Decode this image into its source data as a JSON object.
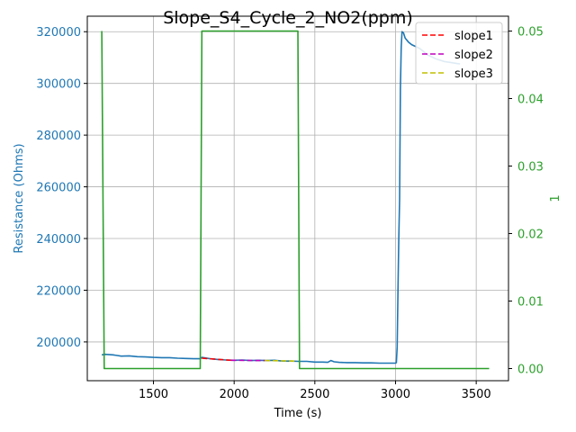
{
  "chart_data": {
    "type": "line",
    "title": "Slope_S4_Cycle_2_NO2(ppm)",
    "xlabel": "Time (s)",
    "ylabel_left": "Resistance (Ohms)",
    "ylabel_right": "1",
    "xlim": [
      1090,
      3700
    ],
    "ylim_left": [
      185000,
      326000
    ],
    "ylim_right": [
      -0.0018,
      0.0522
    ],
    "x_ticks": [
      1500,
      2000,
      2500,
      3000,
      3500
    ],
    "y_ticks_left": [
      200000,
      220000,
      240000,
      260000,
      280000,
      300000,
      320000
    ],
    "y_ticks_left_labels": [
      "200000",
      "220000",
      "240000",
      "260000",
      "280000",
      "300000",
      "320000"
    ],
    "y_ticks_right": [
      0.0,
      0.01,
      0.02,
      0.03,
      0.04,
      0.05
    ],
    "y_ticks_right_labels": [
      "0.00",
      "0.01",
      "0.02",
      "0.03",
      "0.04",
      "0.05"
    ],
    "grid": true,
    "legend_position": "top-right",
    "colors": {
      "resistance": "#1f77b4",
      "concentration": "#2ca02c",
      "slope1": "#ff0000",
      "slope2": "#bf00bf",
      "slope3": "#bfbf00",
      "left_axis_text": "#1f77b4",
      "right_axis_text": "#2ca02c"
    },
    "series": [
      {
        "name": "",
        "axis": "left",
        "color": "#1f77b4",
        "x": [
          1180,
          1200,
          1250,
          1300,
          1350,
          1400,
          1450,
          1500,
          1550,
          1600,
          1650,
          1700,
          1750,
          1790,
          1800,
          1850,
          1900,
          1950,
          2000,
          2050,
          2100,
          2150,
          2200,
          2250,
          2300,
          2350,
          2400,
          2450,
          2500,
          2550,
          2580,
          2600,
          2620,
          2650,
          2700,
          2750,
          2800,
          2850,
          2900,
          2950,
          3000,
          3005,
          3010,
          3015,
          3020,
          3025,
          3030,
          3035,
          3040,
          3050,
          3060,
          3080,
          3100,
          3150,
          3200,
          3250,
          3300,
          3350,
          3400
        ],
        "y": [
          195000,
          195200,
          195000,
          194500,
          194600,
          194300,
          194200,
          194000,
          193900,
          193900,
          193700,
          193600,
          193500,
          193500,
          194000,
          193500,
          193200,
          193000,
          192900,
          193000,
          192800,
          192900,
          192800,
          192900,
          192600,
          192600,
          192500,
          192500,
          192200,
          192200,
          192100,
          192800,
          192300,
          192100,
          192000,
          192000,
          191900,
          191900,
          191800,
          191800,
          191800,
          192000,
          198000,
          220000,
          240000,
          255000,
          298000,
          314000,
          320000,
          319500,
          317500,
          316000,
          315000,
          313500,
          311000,
          309500,
          308500,
          308000,
          307500
        ]
      },
      {
        "name": "",
        "axis": "right",
        "color": "#2ca02c",
        "x": [
          1180,
          1195,
          1780,
          1790,
          1800,
          2385,
          2395,
          2405,
          3580
        ],
        "y": [
          0.05,
          0.0,
          0.0,
          0.0,
          0.05,
          0.05,
          0.05,
          0.0,
          0.0
        ]
      },
      {
        "name": "slope1",
        "axis": "left",
        "color": "#ff0000",
        "style": "dashed",
        "x": [
          1800,
          1980
        ],
        "y": [
          193700,
          192900
        ]
      },
      {
        "name": "slope2",
        "axis": "left",
        "color": "#bf00bf",
        "style": "dashed",
        "x": [
          1980,
          2190
        ],
        "y": [
          192900,
          192800
        ]
      },
      {
        "name": "slope3",
        "axis": "left",
        "color": "#bfbf00",
        "style": "dashed",
        "x": [
          2190,
          2390
        ],
        "y": [
          192800,
          192600
        ]
      }
    ],
    "legend": [
      "slope1",
      "slope2",
      "slope3"
    ]
  }
}
